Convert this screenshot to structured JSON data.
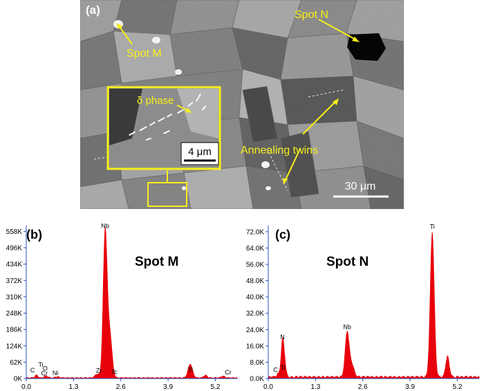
{
  "micrograph": {
    "panel_label": "(a)",
    "labels": {
      "spot_m": "Spot M",
      "spot_n": "Spot N",
      "delta_phase": "δ phase",
      "annealing_twins": "Annealing twins"
    },
    "inset_scale": "4 μm",
    "scale": "30 μm",
    "annotation_color": "#f7ef1a"
  },
  "chart_data": [
    {
      "type": "area",
      "panel_label": "(b)",
      "title": "Spot M",
      "color": "#e8000b",
      "xlim": [
        0,
        5.8
      ],
      "ylim": [
        0,
        580
      ],
      "x_ticks": [
        "0.0",
        "1.3",
        "2.6",
        "3.9",
        "5.2"
      ],
      "x_tick_values": [
        0,
        1.3,
        2.6,
        3.9,
        5.2
      ],
      "y_ticks": [
        "0K",
        "62K",
        "124K",
        "186K",
        "248K",
        "310K",
        "372K",
        "434K",
        "496K",
        "558K"
      ],
      "y_tick_values": [
        0,
        62,
        124,
        186,
        248,
        310,
        372,
        434,
        496,
        558
      ],
      "peaks": [
        {
          "x": 0.28,
          "y": 10,
          "w": 0.04
        },
        {
          "x": 0.52,
          "y": 6,
          "w": 0.04
        },
        {
          "x": 0.58,
          "y": 4,
          "w": 0.04
        },
        {
          "x": 0.85,
          "y": 4,
          "w": 0.05
        },
        {
          "x": 1.95,
          "y": 14,
          "w": 0.06
        },
        {
          "x": 2.17,
          "y": 555,
          "w": 0.055
        },
        {
          "x": 2.3,
          "y": 160,
          "w": 0.06
        },
        {
          "x": 4.51,
          "y": 52,
          "w": 0.06
        },
        {
          "x": 4.93,
          "y": 9,
          "w": 0.05
        },
        {
          "x": 5.41,
          "y": 6,
          "w": 0.05
        }
      ],
      "baseline": 3,
      "element_labels": [
        {
          "text": "Nb",
          "x": 2.17,
          "y": 565
        },
        {
          "text": "Ti",
          "x": 0.4,
          "y": 40
        },
        {
          "text": "O",
          "x": 0.52,
          "y": 25
        },
        {
          "text": "C",
          "x": 0.17,
          "y": 18
        },
        {
          "text": "Cr",
          "x": 0.5,
          "y": 6
        },
        {
          "text": "Ni",
          "x": 0.8,
          "y": 8
        },
        {
          "text": "Zr",
          "x": 2.0,
          "y": 17
        },
        {
          "text": "Tc",
          "x": 2.42,
          "y": 12
        },
        {
          "text": "Ti",
          "x": 4.51,
          "y": 20
        },
        {
          "text": "Cr",
          "x": 5.55,
          "y": 11
        }
      ]
    },
    {
      "type": "area",
      "panel_label": "(c)",
      "title": "Spot N",
      "color": "#e8000b",
      "xlim": [
        0,
        5.8
      ],
      "ylim": [
        0,
        75
      ],
      "x_ticks": [
        "0.0",
        "1.3",
        "2.6",
        "3.9",
        "5.2"
      ],
      "x_tick_values": [
        0,
        1.3,
        2.6,
        3.9,
        5.2
      ],
      "y_ticks": [
        "0.0K",
        "8.0K",
        "16.0K",
        "24.0K",
        "32.0K",
        "40.0K",
        "48.0K",
        "56.0K",
        "64.0K",
        "72.0K"
      ],
      "y_tick_values": [
        0,
        8,
        16,
        24,
        32,
        40,
        48,
        56,
        64,
        72
      ],
      "peaks": [
        {
          "x": 0.27,
          "y": 1.5,
          "w": 0.04
        },
        {
          "x": 0.39,
          "y": 17,
          "w": 0.04
        },
        {
          "x": 0.45,
          "y": 6,
          "w": 0.04
        },
        {
          "x": 2.17,
          "y": 22,
          "w": 0.055
        },
        {
          "x": 2.3,
          "y": 6,
          "w": 0.06
        },
        {
          "x": 4.51,
          "y": 71,
          "w": 0.055
        },
        {
          "x": 4.93,
          "y": 10,
          "w": 0.05
        }
      ],
      "baseline": 0.8,
      "element_labels": [
        {
          "text": "Ti",
          "x": 4.51,
          "y": 72.8
        },
        {
          "text": "Nb",
          "x": 2.17,
          "y": 23.6
        },
        {
          "text": "N",
          "x": 0.39,
          "y": 18.6
        },
        {
          "text": "C",
          "x": 0.2,
          "y": 2.5
        },
        {
          "text": "Ti",
          "x": 0.4,
          "y": 3.5
        }
      ]
    }
  ]
}
